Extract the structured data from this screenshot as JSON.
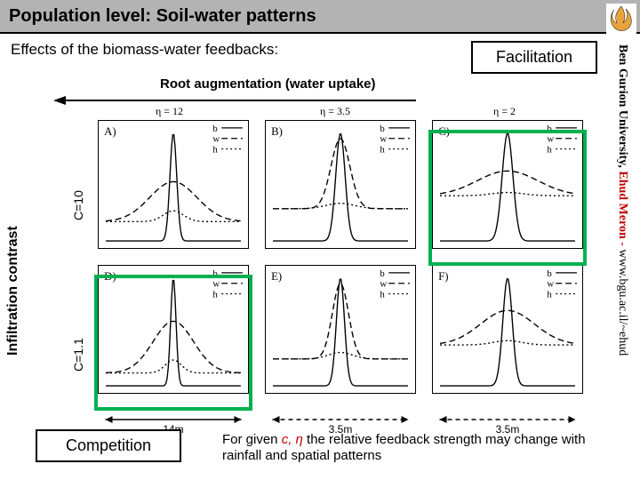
{
  "title": "Population level: Soil-water patterns",
  "subhead": "Effects of the biomass-water feedbacks:",
  "root_aug_label": "Root augmentation (water uptake)",
  "facilitation_label": "Facilitation",
  "competition_label": "Competition",
  "ylabel": "Infiltration contrast",
  "c_labels": {
    "top": "C=10",
    "bottom": "C=1.1"
  },
  "eta_labels": [
    "η = 12",
    "η = 3.5",
    "η = 2"
  ],
  "panels": {
    "layout": {
      "rows": 2,
      "cols": 3,
      "w": 170,
      "h": 145,
      "gap_x": 18,
      "gap_y": 18
    },
    "letters": [
      "A)",
      "B)",
      "C)",
      "D)",
      "E)",
      "F)"
    ],
    "legend": [
      "b",
      "w",
      "h"
    ],
    "legend_styles": [
      "solid",
      "long-dash",
      "short-dash"
    ],
    "curve_color": "#000000",
    "ylim": [
      0,
      1.05
    ],
    "xlim": [
      -1,
      1
    ],
    "curves": {
      "A": {
        "b_peak": 1.0,
        "b_width": 0.05,
        "w_peak": 0.55,
        "w_width": 0.35,
        "w_dip": 0.18,
        "h_base": 0.18,
        "h_rise": 0.1
      },
      "B": {
        "b_peak": 1.0,
        "b_width": 0.07,
        "w_peak": 0.95,
        "w_width": 0.14,
        "w_dip": 0.3,
        "h_base": 0.3,
        "h_rise": 0.05
      },
      "C": {
        "b_peak": 1.0,
        "b_width": 0.08,
        "w_peak": 0.65,
        "w_width": 0.45,
        "w_dip": 0.42,
        "h_base": 0.42,
        "h_rise": 0.03
      },
      "D": {
        "b_peak": 1.0,
        "b_width": 0.04,
        "w_peak": 0.6,
        "w_width": 0.3,
        "w_dip": 0.12,
        "h_base": 0.12,
        "h_rise": 0.12
      },
      "E": {
        "b_peak": 1.0,
        "b_width": 0.06,
        "w_peak": 0.95,
        "w_width": 0.12,
        "w_dip": 0.25,
        "h_base": 0.25,
        "h_rise": 0.06
      },
      "F": {
        "b_peak": 1.0,
        "b_width": 0.07,
        "w_peak": 0.7,
        "w_width": 0.4,
        "w_dip": 0.38,
        "h_base": 0.38,
        "h_rise": 0.04
      }
    }
  },
  "dim_labels": [
    "14m",
    "3.5m",
    "3.5m"
  ],
  "highlight_color": "#00b050",
  "bottom_text_1": "For given ",
  "bottom_text_vars": "c, η",
  "bottom_text_2": "  the relative feedback strength may change with rainfall  and spatial patterns",
  "side_text_prefix": "Ben Gurion University, ",
  "side_text_mid": "Ehud Meron - ",
  "side_text_url": "www.bgu.ac.il/~ehud",
  "colors": {
    "title_bg": "#b3b3b3",
    "accent_red": "#c00000",
    "highlight": "#00b050",
    "logo_orange": "#e8a33d",
    "logo_dark": "#3a2a1a"
  },
  "logo": {
    "shape": "flame",
    "bg": "#ffffff"
  }
}
